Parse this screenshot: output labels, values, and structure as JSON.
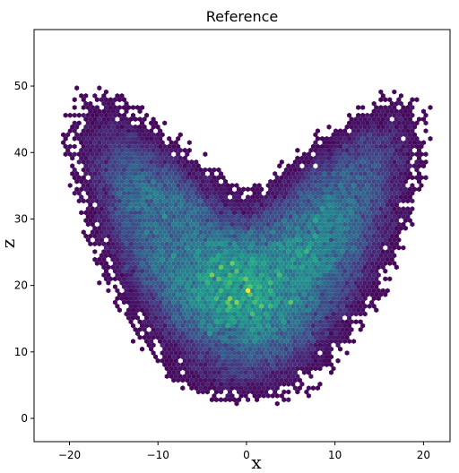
{
  "chart_data": {
    "type": "heatmap",
    "subtype": "hexbin",
    "title": "Reference",
    "xlabel": "x",
    "ylabel": "z",
    "xlim": [
      -24,
      23
    ],
    "ylim": [
      -3.5,
      58.5
    ],
    "xticks": [
      -20,
      -10,
      0,
      10,
      20
    ],
    "yticks": [
      0,
      10,
      20,
      30,
      40,
      50
    ],
    "grid": false,
    "colormap": "viridis",
    "shape": "butterfly-shaped point density of the Lorenz attractor projected onto x-z",
    "density_peaks": [
      {
        "x": -8,
        "z": 24
      },
      {
        "x": 8,
        "z": 24
      },
      {
        "x": -10,
        "z": 30
      },
      {
        "x": 8,
        "z": 28
      }
    ],
    "extent": {
      "x_min": -22,
      "x_max": 22,
      "z_min": -1,
      "z_max": 56
    }
  },
  "colors": {
    "low": "#440154",
    "mid": "#21918c",
    "high": "#fde725",
    "axes": "#000000",
    "background": "#ffffff"
  }
}
